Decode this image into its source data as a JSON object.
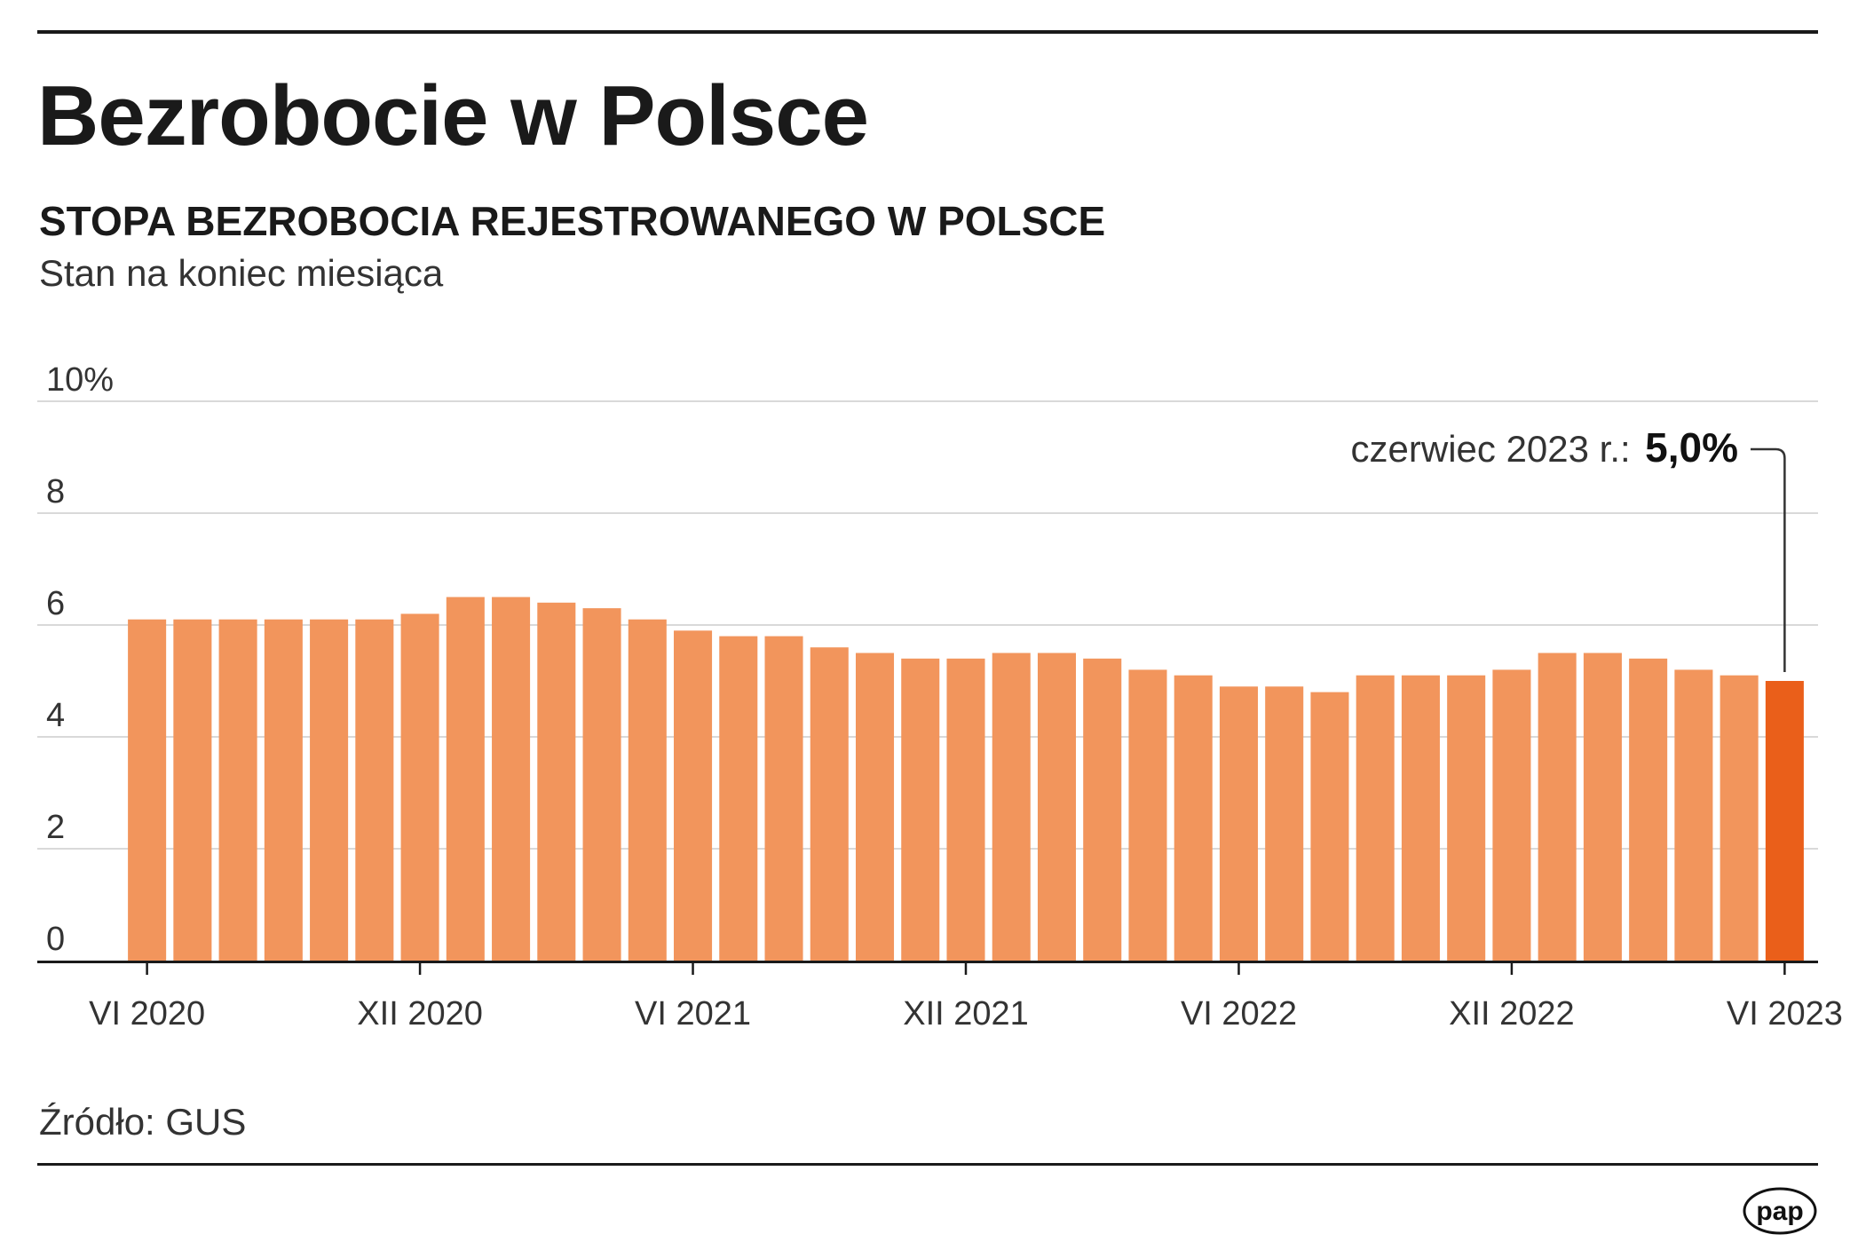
{
  "title": "Bezrobocie w Polsce",
  "subtitle": "STOPA BEZROBOCIA REJESTROWANEGO W POLSCE",
  "note": "Stan na koniec miesiąca",
  "source": "Źródło: GUS",
  "logo_text": "pap",
  "colors": {
    "bar": "#f2955c",
    "highlight": "#ea5f1a",
    "grid": "#d9d9d9",
    "axis": "#1a1a1a"
  },
  "chart_data": {
    "type": "bar",
    "title": "STOPA BEZROBOCIA REJESTROWANEGO W POLSCE",
    "subtitle": "Stan na koniec miesiąca",
    "xlabel": "",
    "ylabel": "",
    "ylim": [
      0,
      10
    ],
    "yticks": [
      0,
      2,
      4,
      6,
      8,
      10
    ],
    "ytick_labels": [
      "0",
      "2",
      "4",
      "6",
      "8",
      "10%"
    ],
    "grid": true,
    "categories": [
      "VI 2020",
      "VII 2020",
      "VIII 2020",
      "IX 2020",
      "X 2020",
      "XI 2020",
      "XII 2020",
      "I 2021",
      "II 2021",
      "III 2021",
      "IV 2021",
      "V 2021",
      "VI 2021",
      "VII 2021",
      "VIII 2021",
      "IX 2021",
      "X 2021",
      "XI 2021",
      "XII 2021",
      "I 2022",
      "II 2022",
      "III 2022",
      "IV 2022",
      "V 2022",
      "VI 2022",
      "VII 2022",
      "VIII 2022",
      "IX 2022",
      "X 2022",
      "XI 2022",
      "XII 2022",
      "I 2023",
      "II 2023",
      "III 2023",
      "IV 2023",
      "V 2023",
      "VI 2023"
    ],
    "values": [
      6.1,
      6.1,
      6.1,
      6.1,
      6.1,
      6.1,
      6.2,
      6.5,
      6.5,
      6.4,
      6.3,
      6.1,
      5.9,
      5.8,
      5.8,
      5.6,
      5.5,
      5.4,
      5.4,
      5.5,
      5.5,
      5.4,
      5.2,
      5.1,
      4.9,
      4.9,
      4.8,
      5.1,
      5.1,
      5.1,
      5.2,
      5.5,
      5.5,
      5.4,
      5.2,
      5.1,
      5.0
    ],
    "xtick_labels": [
      "VI 2020",
      "XII 2020",
      "VI 2021",
      "XII 2021",
      "VI 2022",
      "XII 2022",
      "VI 2023"
    ],
    "highlight_last": true,
    "annotation": {
      "label": "czerwiec 2023 r.:",
      "value": "5,0%"
    }
  }
}
